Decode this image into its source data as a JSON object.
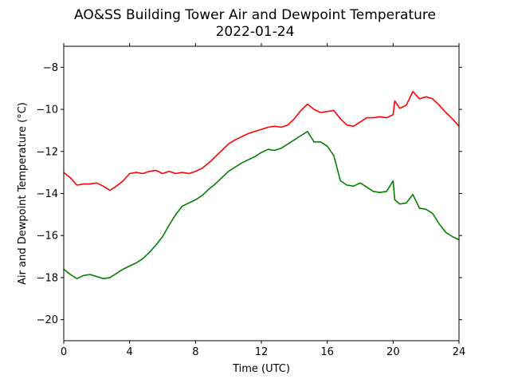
{
  "chart_data": {
    "type": "line",
    "title": "AO&SS Building Tower Air and Dewpoint Temperature",
    "subtitle": "2022-01-24",
    "xlabel": "Time (UTC)",
    "ylabel": "Air and Dewpoint Temperature (°C)",
    "xlim": [
      0,
      24
    ],
    "ylim": [
      -21,
      -7
    ],
    "xticks": [
      0,
      4,
      8,
      12,
      16,
      20,
      24
    ],
    "xtick_labels": [
      "0",
      "4",
      "8",
      "12",
      "16",
      "20",
      "24"
    ],
    "yticks": [
      -20,
      -18,
      -16,
      -14,
      -12,
      -10,
      -8
    ],
    "ytick_labels": [
      "−20",
      "−18",
      "−16",
      "−14",
      "−12",
      "−10",
      "−8"
    ],
    "grid": false,
    "series": [
      {
        "color": "#ff0000",
        "x": [
          0,
          0.4,
          0.8,
          1.2,
          1.6,
          2,
          2.4,
          2.8,
          3.2,
          3.6,
          4,
          4.4,
          4.8,
          5.2,
          5.6,
          6,
          6.4,
          6.8,
          7.2,
          7.6,
          8,
          8.4,
          8.8,
          9.2,
          9.6,
          10,
          10.4,
          10.8,
          11.2,
          11.6,
          12,
          12.4,
          12.8,
          13.2,
          13.6,
          14,
          14.4,
          14.8,
          15.2,
          15.6,
          16,
          16.4,
          16.8,
          17.2,
          17.6,
          18,
          18.4,
          18.8,
          19.2,
          19.6,
          20,
          20.1,
          20.4,
          20.8,
          21.2,
          21.6,
          22,
          22.4,
          22.8,
          23.2,
          23.6,
          24
        ],
        "y": [
          -13,
          -13.25,
          -13.6,
          -13.55,
          -13.55,
          -13.5,
          -13.65,
          -13.85,
          -13.65,
          -13.4,
          -13.05,
          -13.0,
          -13.05,
          -12.95,
          -12.9,
          -13.05,
          -12.95,
          -13.05,
          -13.0,
          -13.05,
          -12.95,
          -12.8,
          -12.55,
          -12.25,
          -11.95,
          -11.65,
          -11.45,
          -11.3,
          -11.15,
          -11.05,
          -10.95,
          -10.85,
          -10.8,
          -10.85,
          -10.75,
          -10.45,
          -10.05,
          -9.75,
          -10.0,
          -10.15,
          -10.1,
          -10.05,
          -10.45,
          -10.75,
          -10.8,
          -10.6,
          -10.4,
          -10.4,
          -10.35,
          -10.4,
          -10.25,
          -9.6,
          -9.95,
          -9.8,
          -9.15,
          -9.5,
          -9.4,
          -9.5,
          -9.8,
          -10.15,
          -10.45,
          -10.8
        ]
      },
      {
        "color": "#008000",
        "x": [
          0,
          0.4,
          0.8,
          1.2,
          1.6,
          2,
          2.4,
          2.8,
          3.2,
          3.6,
          4,
          4.4,
          4.8,
          5.2,
          5.6,
          6,
          6.4,
          6.8,
          7.2,
          7.6,
          8,
          8.4,
          8.8,
          9.2,
          9.6,
          10,
          10.4,
          10.8,
          11.2,
          11.6,
          12,
          12.4,
          12.8,
          13.2,
          13.6,
          14,
          14.4,
          14.8,
          15.2,
          15.6,
          16,
          16.4,
          16.8,
          17.2,
          17.6,
          18,
          18.4,
          18.8,
          19.2,
          19.6,
          20,
          20.1,
          20.4,
          20.8,
          21.2,
          21.6,
          22,
          22.4,
          22.8,
          23.2,
          23.6,
          24
        ],
        "y": [
          -17.6,
          -17.85,
          -18.05,
          -17.9,
          -17.85,
          -17.95,
          -18.05,
          -18.0,
          -17.8,
          -17.6,
          -17.45,
          -17.3,
          -17.1,
          -16.8,
          -16.45,
          -16.05,
          -15.5,
          -15.0,
          -14.6,
          -14.45,
          -14.3,
          -14.1,
          -13.8,
          -13.55,
          -13.25,
          -12.95,
          -12.75,
          -12.55,
          -12.4,
          -12.25,
          -12.05,
          -11.9,
          -11.95,
          -11.85,
          -11.65,
          -11.45,
          -11.25,
          -11.05,
          -11.55,
          -11.55,
          -11.75,
          -12.2,
          -13.4,
          -13.6,
          -13.65,
          -13.5,
          -13.7,
          -13.9,
          -13.95,
          -13.9,
          -13.4,
          -14.3,
          -14.5,
          -14.45,
          -14.05,
          -14.7,
          -14.75,
          -14.95,
          -15.45,
          -15.85,
          -16.05,
          -16.2
        ]
      }
    ]
  }
}
